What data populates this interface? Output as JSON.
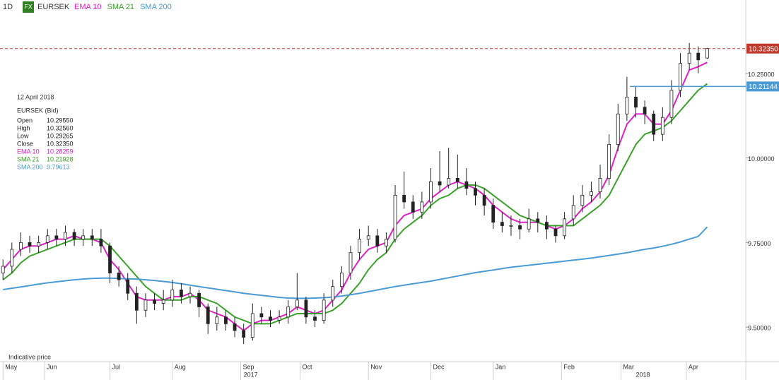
{
  "chart_data": {
    "type": "candlestick",
    "interval": "1D",
    "badge": "FX",
    "symbol": "EURSEK",
    "note": "Indicative price",
    "xlim": [
      -1,
      250
    ],
    "ylim": [
      9.398,
      10.467
    ],
    "yticks": [
      {
        "value": 10.25,
        "label": "10.25000"
      },
      {
        "value": 10.0,
        "label": "10.00000"
      },
      {
        "value": 9.75,
        "label": "9.75000"
      },
      {
        "value": 9.5,
        "label": "9.50000"
      }
    ],
    "xticks": [
      {
        "value": 0,
        "label": "May"
      },
      {
        "value": 14,
        "label": "Jun"
      },
      {
        "value": 36,
        "label": "Jul"
      },
      {
        "value": 57,
        "label": "Aug"
      },
      {
        "value": 80,
        "label": "Sep"
      },
      {
        "value": 100,
        "label": "Oct"
      },
      {
        "value": 123,
        "label": "Nov"
      },
      {
        "value": 144,
        "label": "Dec"
      },
      {
        "value": 165,
        "label": "Jan"
      },
      {
        "value": 188,
        "label": "Feb"
      },
      {
        "value": 208,
        "label": "Mar"
      },
      {
        "value": 230,
        "label": "Apr"
      }
    ],
    "year_labels": [
      {
        "value": 81,
        "label": "2017"
      },
      {
        "value": 213,
        "label": "2018"
      }
    ],
    "x": [
      0,
      3,
      6,
      9,
      12,
      15,
      18,
      21,
      24,
      27,
      30,
      33,
      36,
      39,
      42,
      45,
      48,
      51,
      54,
      57,
      60,
      63,
      66,
      69,
      72,
      75,
      78,
      81,
      84,
      87,
      90,
      93,
      96,
      99,
      102,
      105,
      108,
      111,
      114,
      117,
      120,
      123,
      126,
      129,
      132,
      135,
      138,
      141,
      144,
      147,
      150,
      153,
      156,
      159,
      162,
      165,
      168,
      171,
      174,
      177,
      180,
      183,
      186,
      189,
      192,
      195,
      198,
      201,
      204,
      207,
      210,
      213,
      216,
      219,
      222,
      225,
      228,
      231,
      234,
      237
    ],
    "ohlc": [
      [
        9.66,
        9.7,
        9.64,
        9.68
      ],
      [
        9.68,
        9.75,
        9.66,
        9.73
      ],
      [
        9.73,
        9.78,
        9.71,
        9.75
      ],
      [
        9.75,
        9.77,
        9.72,
        9.74
      ],
      [
        9.74,
        9.77,
        9.72,
        9.75
      ],
      [
        9.75,
        9.79,
        9.73,
        9.77
      ],
      [
        9.77,
        9.79,
        9.74,
        9.76
      ],
      [
        9.76,
        9.8,
        9.74,
        9.78
      ],
      [
        9.78,
        9.79,
        9.74,
        9.76
      ],
      [
        9.76,
        9.79,
        9.74,
        9.77
      ],
      [
        9.77,
        9.79,
        9.74,
        9.76
      ],
      [
        9.76,
        9.79,
        9.72,
        9.74
      ],
      [
        9.74,
        9.75,
        9.63,
        9.66
      ],
      [
        9.66,
        9.68,
        9.62,
        9.64
      ],
      [
        9.64,
        9.66,
        9.58,
        9.6
      ],
      [
        9.6,
        9.62,
        9.51,
        9.55
      ],
      [
        9.55,
        9.6,
        9.53,
        9.58
      ],
      [
        9.58,
        9.6,
        9.55,
        9.57
      ],
      [
        9.57,
        9.61,
        9.55,
        9.58
      ],
      [
        9.58,
        9.64,
        9.56,
        9.61
      ],
      [
        9.61,
        9.63,
        9.57,
        9.59
      ],
      [
        9.59,
        9.62,
        9.57,
        9.6
      ],
      [
        9.6,
        9.61,
        9.53,
        9.56
      ],
      [
        9.56,
        9.57,
        9.48,
        9.51
      ],
      [
        9.51,
        9.56,
        9.49,
        9.53
      ],
      [
        9.53,
        9.55,
        9.49,
        9.51
      ],
      [
        9.51,
        9.53,
        9.47,
        9.49
      ],
      [
        9.49,
        9.51,
        9.45,
        9.47
      ],
      [
        9.47,
        9.57,
        9.46,
        9.54
      ],
      [
        9.54,
        9.56,
        9.51,
        9.53
      ],
      [
        9.53,
        9.55,
        9.5,
        9.52
      ],
      [
        9.52,
        9.55,
        9.51,
        9.53
      ],
      [
        9.53,
        9.58,
        9.51,
        9.56
      ],
      [
        9.56,
        9.66,
        9.55,
        9.58
      ],
      [
        9.58,
        9.59,
        9.51,
        9.53
      ],
      [
        9.53,
        9.55,
        9.5,
        9.52
      ],
      [
        9.52,
        9.6,
        9.51,
        9.58
      ],
      [
        9.58,
        9.64,
        9.56,
        9.62
      ],
      [
        9.62,
        9.68,
        9.6,
        9.66
      ],
      [
        9.66,
        9.74,
        9.64,
        9.72
      ],
      [
        9.72,
        9.79,
        9.7,
        9.76
      ],
      [
        9.76,
        9.8,
        9.74,
        9.77
      ],
      [
        9.77,
        9.79,
        9.72,
        9.74
      ],
      [
        9.74,
        9.78,
        9.72,
        9.76
      ],
      [
        9.76,
        9.92,
        9.75,
        9.89
      ],
      [
        9.89,
        9.96,
        9.85,
        9.87
      ],
      [
        9.87,
        9.89,
        9.82,
        9.84
      ],
      [
        9.84,
        9.9,
        9.82,
        9.87
      ],
      [
        9.87,
        9.97,
        9.85,
        9.93
      ],
      [
        9.93,
        10.02,
        9.9,
        9.92
      ],
      [
        9.92,
        10.03,
        9.91,
        9.94
      ],
      [
        9.94,
        10.01,
        9.91,
        9.93
      ],
      [
        9.93,
        9.97,
        9.89,
        9.91
      ],
      [
        9.91,
        9.93,
        9.86,
        9.89
      ],
      [
        9.89,
        9.91,
        9.83,
        9.86
      ],
      [
        9.86,
        9.88,
        9.79,
        9.81
      ],
      [
        9.81,
        9.84,
        9.78,
        9.8
      ],
      [
        9.8,
        9.83,
        9.77,
        9.8
      ],
      [
        9.8,
        9.82,
        9.76,
        9.79
      ],
      [
        9.79,
        9.85,
        9.78,
        9.82
      ],
      [
        9.82,
        9.84,
        9.78,
        9.81
      ],
      [
        9.81,
        9.83,
        9.76,
        9.79
      ],
      [
        9.79,
        9.8,
        9.75,
        9.77
      ],
      [
        9.77,
        9.84,
        9.76,
        9.82
      ],
      [
        9.82,
        9.89,
        9.8,
        9.86
      ],
      [
        9.86,
        9.92,
        9.84,
        9.89
      ],
      [
        9.89,
        9.93,
        9.87,
        9.9
      ],
      [
        9.9,
        9.98,
        9.88,
        9.94
      ],
      [
        9.94,
        10.07,
        9.92,
        10.04
      ],
      [
        10.04,
        10.16,
        10.02,
        10.13
      ],
      [
        10.13,
        10.24,
        10.11,
        10.18
      ],
      [
        10.18,
        10.21,
        10.12,
        10.15
      ],
      [
        10.15,
        10.17,
        10.1,
        10.13
      ],
      [
        10.13,
        10.14,
        10.05,
        10.07
      ],
      [
        10.07,
        10.15,
        10.05,
        10.12
      ],
      [
        10.12,
        10.23,
        10.1,
        10.2
      ],
      [
        10.2,
        10.31,
        10.18,
        10.28
      ],
      [
        10.28,
        10.34,
        10.26,
        10.31
      ],
      [
        10.31,
        10.33,
        10.25,
        10.29
      ],
      [
        10.2955,
        10.3256,
        10.29265,
        10.3235
      ]
    ],
    "lines": [
      {
        "name": "EMA 10",
        "color": "#e020c8",
        "values": [
          9.67,
          9.7,
          9.73,
          9.74,
          9.74,
          9.75,
          9.76,
          9.76,
          9.77,
          9.76,
          9.76,
          9.75,
          9.7,
          9.67,
          9.63,
          9.59,
          9.58,
          9.58,
          9.58,
          9.59,
          9.59,
          9.6,
          9.58,
          9.55,
          9.54,
          9.53,
          9.51,
          9.49,
          9.51,
          9.52,
          9.52,
          9.53,
          9.54,
          9.56,
          9.55,
          9.54,
          9.55,
          9.58,
          9.61,
          9.66,
          9.7,
          9.73,
          9.74,
          9.75,
          9.8,
          9.83,
          9.84,
          9.85,
          9.88,
          9.9,
          9.92,
          9.93,
          9.92,
          9.91,
          9.89,
          9.86,
          9.84,
          9.82,
          9.81,
          9.81,
          9.81,
          9.8,
          9.79,
          9.8,
          9.82,
          9.85,
          9.87,
          9.9,
          9.95,
          10.03,
          10.1,
          10.13,
          10.13,
          10.1,
          10.1,
          10.14,
          10.2,
          10.26,
          10.27,
          10.28259
        ]
      },
      {
        "name": "SMA 21",
        "color": "#3aa32a",
        "values": [
          9.64,
          9.66,
          9.69,
          9.71,
          9.72,
          9.73,
          9.74,
          9.75,
          9.76,
          9.76,
          9.76,
          9.76,
          9.74,
          9.71,
          9.68,
          9.65,
          9.62,
          9.6,
          9.58,
          9.58,
          9.58,
          9.59,
          9.59,
          9.58,
          9.57,
          9.55,
          9.53,
          9.52,
          9.51,
          9.51,
          9.51,
          9.52,
          9.53,
          9.54,
          9.54,
          9.54,
          9.54,
          9.55,
          9.57,
          9.6,
          9.63,
          9.67,
          9.7,
          9.72,
          9.76,
          9.79,
          9.81,
          9.83,
          9.86,
          9.88,
          9.89,
          9.91,
          9.92,
          9.92,
          9.91,
          9.89,
          9.87,
          9.85,
          9.83,
          9.82,
          9.81,
          9.8,
          9.8,
          9.8,
          9.8,
          9.82,
          9.84,
          9.86,
          9.89,
          9.94,
          9.99,
          10.04,
          10.07,
          10.08,
          10.09,
          10.11,
          10.14,
          10.17,
          10.2,
          10.21928
        ]
      },
      {
        "name": "SMA 200",
        "color": "#4a9bd6",
        "values": [
          9.611,
          9.615,
          9.619,
          9.623,
          9.627,
          9.631,
          9.634,
          9.637,
          9.64,
          9.642,
          9.644,
          9.645,
          9.645,
          9.644,
          9.643,
          9.642,
          9.64,
          9.638,
          9.635,
          9.632,
          9.628,
          9.624,
          9.62,
          9.616,
          9.612,
          9.608,
          9.604,
          9.6,
          9.597,
          9.594,
          9.591,
          9.588,
          9.586,
          9.585,
          9.585,
          9.586,
          9.587,
          9.589,
          9.592,
          9.596,
          9.6,
          9.605,
          9.61,
          9.615,
          9.62,
          9.624,
          9.628,
          9.632,
          9.636,
          9.641,
          9.646,
          9.651,
          9.656,
          9.661,
          9.665,
          9.669,
          9.673,
          9.677,
          9.68,
          9.683,
          9.686,
          9.689,
          9.692,
          9.695,
          9.698,
          9.701,
          9.704,
          9.708,
          9.712,
          9.716,
          9.72,
          9.725,
          9.73,
          9.734,
          9.739,
          9.745,
          9.752,
          9.76,
          9.768,
          9.79613
        ]
      }
    ],
    "price_lines": [
      {
        "value": 10.3235,
        "label": "10.32350",
        "color": "#c0392b",
        "dashed": true,
        "from": -1
      },
      {
        "value": 10.21144,
        "label": "10.21144",
        "color": "#4a9bd6",
        "dashed": false,
        "from": 211
      }
    ],
    "info": {
      "date": "12 April 2018",
      "title": "EURSEK (Bid)",
      "rows": [
        {
          "label": "Open",
          "value": "10.29550",
          "color": "#222222"
        },
        {
          "label": "High",
          "value": "10.32560",
          "color": "#222222"
        },
        {
          "label": "Low",
          "value": "10.29265",
          "color": "#222222"
        },
        {
          "label": "Close",
          "value": "10.32350",
          "color": "#222222"
        },
        {
          "label": "EMA 10",
          "value": "10.28259",
          "color": "#e020c8"
        },
        {
          "label": "SMA 21",
          "value": "10.21928",
          "color": "#3aa32a"
        },
        {
          "label": "SMA 200",
          "value": "9.79613",
          "color": "#4a9bd6"
        }
      ]
    }
  }
}
